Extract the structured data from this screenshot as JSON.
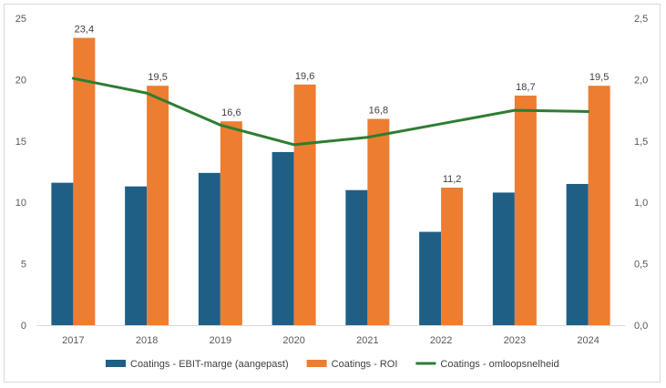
{
  "chart_data": {
    "type": "bar",
    "categories": [
      "2017",
      "2018",
      "2019",
      "2020",
      "2021",
      "2022",
      "2023",
      "2024"
    ],
    "series": [
      {
        "name": "Coatings - EBIT-marge (aangepast)",
        "type": "bar",
        "axis": "left",
        "color": "#1f5f86",
        "values": [
          11.6,
          11.3,
          12.4,
          14.1,
          11.0,
          7.6,
          10.8,
          11.5
        ]
      },
      {
        "name": "Coatings - ROI",
        "type": "bar",
        "axis": "left",
        "color": "#ed7d31",
        "values": [
          23.4,
          19.5,
          16.6,
          19.6,
          16.8,
          11.2,
          18.7,
          19.5
        ],
        "data_labels": [
          "23,4",
          "19,5",
          "16,6",
          "19,6",
          "16,8",
          "11,2",
          "18,7",
          "19,5"
        ]
      },
      {
        "name": "Coatings - omloopsnelheid",
        "type": "line",
        "axis": "right",
        "color": "#2e7d32",
        "values": [
          2.01,
          1.89,
          1.63,
          1.47,
          1.53,
          1.64,
          1.75,
          1.74
        ]
      }
    ],
    "y_left": {
      "ylim": [
        0,
        25
      ],
      "ticks": [
        "0",
        "5",
        "10",
        "15",
        "20",
        "25"
      ]
    },
    "y_right": {
      "ylim": [
        0,
        2.5
      ],
      "ticks": [
        "0,0",
        "0,5",
        "1,0",
        "1,5",
        "2,0",
        "2,5"
      ]
    },
    "grid": false,
    "legend_position": "bottom"
  }
}
